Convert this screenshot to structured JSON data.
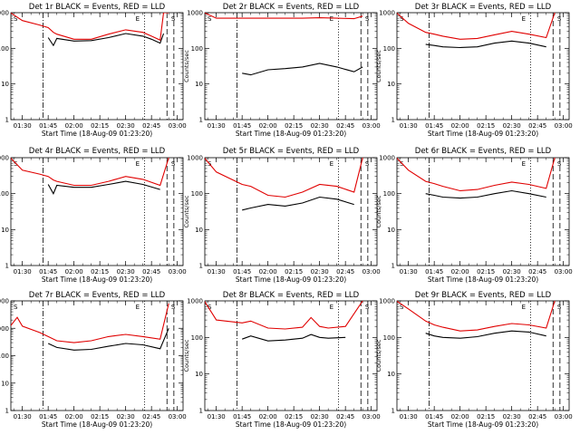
{
  "ylabel": "Counts/sec",
  "xlabel": "Start Time (18-Aug-09 01:23:20)",
  "xtick_labels": [
    "01:30",
    "01:45",
    "02:00",
    "02:15",
    "02:30",
    "02:45",
    "03:00"
  ],
  "ytick_labels": [
    "1",
    "10",
    "100",
    "1000"
  ],
  "ytick_labels_tall": [
    "1",
    "10",
    "100",
    "1000",
    "10000"
  ],
  "colors": {
    "events": "#000000",
    "lld": "#e00000"
  },
  "chart_data": [
    {
      "type": "line",
      "title": "Det 1r BLACK = Events, RED = LLD",
      "xlim": [
        "01:23:20",
        "03:03:20"
      ],
      "ylim": [
        1,
        1000
      ],
      "yscale": "log",
      "x": [
        "01:23",
        "01:30",
        "01:40",
        "01:45",
        "01:48",
        "01:50",
        "02:00",
        "02:10",
        "02:20",
        "02:30",
        "02:40",
        "02:45",
        "02:50",
        "02:52",
        "02:55"
      ],
      "series": [
        {
          "name": "Events",
          "values": [
            null,
            null,
            null,
            200,
            120,
            190,
            160,
            165,
            200,
            260,
            220,
            180,
            140,
            260,
            null
          ]
        },
        {
          "name": "LLD",
          "values": [
            1000,
            600,
            450,
            380,
            280,
            250,
            180,
            180,
            250,
            330,
            280,
            220,
            170,
            1000,
            1000
          ]
        }
      ],
      "markers": [
        "S",
        "E",
        "S"
      ],
      "vlines": [
        "01:42",
        "02:41",
        "02:54",
        "02:58"
      ]
    },
    {
      "type": "line",
      "title": "Det 2r BLACK = Events, RED = LLD",
      "xlim": [
        "01:23:20",
        "03:03:20"
      ],
      "ylim": [
        1,
        1000
      ],
      "yscale": "log",
      "x": [
        "01:23",
        "01:30",
        "01:45",
        "01:50",
        "02:00",
        "02:10",
        "02:20",
        "02:30",
        "02:40",
        "02:50",
        "02:55"
      ],
      "series": [
        {
          "name": "Events",
          "values": [
            null,
            null,
            20,
            18,
            25,
            27,
            30,
            38,
            30,
            22,
            30
          ]
        },
        {
          "name": "LLD",
          "values": [
            1000,
            700,
            700,
            700,
            700,
            700,
            700,
            720,
            700,
            680,
            800
          ]
        }
      ],
      "markers": [
        "S",
        "E",
        "S"
      ],
      "vlines": [
        "01:42",
        "02:41",
        "02:54",
        "02:58"
      ]
    },
    {
      "type": "line",
      "title": "Det 3r BLACK = Events, RED = LLD",
      "xlim": [
        "01:23:20",
        "03:03:20"
      ],
      "ylim": [
        1,
        1000
      ],
      "yscale": "log",
      "x": [
        "01:23",
        "01:30",
        "01:40",
        "01:45",
        "01:50",
        "02:00",
        "02:10",
        "02:20",
        "02:30",
        "02:40",
        "02:50",
        "02:55"
      ],
      "series": [
        {
          "name": "Events",
          "values": [
            null,
            null,
            130,
            120,
            110,
            105,
            110,
            140,
            160,
            140,
            110,
            null
          ]
        },
        {
          "name": "LLD",
          "values": [
            1000,
            500,
            280,
            250,
            220,
            180,
            190,
            240,
            300,
            250,
            200,
            1000
          ]
        }
      ],
      "markers": [
        "S",
        "E",
        "S"
      ],
      "vlines": [
        "01:42",
        "02:41",
        "02:54",
        "02:58"
      ]
    },
    {
      "type": "line",
      "title": "Det 4r BLACK = Events, RED = LLD",
      "xlim": [
        "01:23:20",
        "03:03:20"
      ],
      "ylim": [
        1,
        1000
      ],
      "yscale": "log",
      "x": [
        "01:23",
        "01:30",
        "01:40",
        "01:45",
        "01:48",
        "01:50",
        "02:00",
        "02:10",
        "02:20",
        "02:30",
        "02:40",
        "02:50",
        "02:55"
      ],
      "series": [
        {
          "name": "Events",
          "values": [
            null,
            null,
            null,
            180,
            100,
            170,
            150,
            150,
            180,
            220,
            180,
            130,
            null
          ]
        },
        {
          "name": "LLD",
          "values": [
            1000,
            450,
            350,
            300,
            240,
            220,
            170,
            170,
            220,
            300,
            250,
            170,
            1000
          ]
        }
      ],
      "markers": [
        "S",
        "E",
        "S"
      ],
      "vlines": [
        "01:42",
        "02:41",
        "02:54",
        "02:58"
      ]
    },
    {
      "type": "line",
      "title": "Det 5r BLACK = Events, RED = LLD",
      "xlim": [
        "01:23:20",
        "03:03:20"
      ],
      "ylim": [
        1,
        1000
      ],
      "yscale": "log",
      "x": [
        "01:23",
        "01:30",
        "01:45",
        "01:50",
        "02:00",
        "02:10",
        "02:20",
        "02:30",
        "02:40",
        "02:50",
        "02:55"
      ],
      "series": [
        {
          "name": "Events",
          "values": [
            null,
            null,
            35,
            40,
            50,
            45,
            55,
            80,
            70,
            50,
            null
          ]
        },
        {
          "name": "LLD",
          "values": [
            1000,
            400,
            180,
            160,
            90,
            80,
            110,
            180,
            160,
            110,
            1000
          ]
        }
      ],
      "markers": [
        "S",
        "E",
        "S"
      ],
      "vlines": [
        "01:42",
        "02:41",
        "02:54",
        "02:58"
      ]
    },
    {
      "type": "line",
      "title": "Det 6r BLACK = Events, RED = LLD",
      "xlim": [
        "01:23:20",
        "03:03:20"
      ],
      "ylim": [
        1,
        1000
      ],
      "yscale": "log",
      "x": [
        "01:23",
        "01:30",
        "01:40",
        "01:45",
        "01:50",
        "02:00",
        "02:10",
        "02:20",
        "02:30",
        "02:40",
        "02:50",
        "02:55"
      ],
      "series": [
        {
          "name": "Events",
          "values": [
            null,
            null,
            100,
            90,
            80,
            75,
            80,
            100,
            120,
            100,
            80,
            null
          ]
        },
        {
          "name": "LLD",
          "values": [
            1000,
            450,
            220,
            190,
            160,
            120,
            130,
            170,
            210,
            180,
            140,
            1000
          ]
        }
      ],
      "markers": [
        "S",
        "E",
        "S"
      ],
      "vlines": [
        "01:42",
        "02:41",
        "02:54",
        "02:58"
      ]
    },
    {
      "type": "line",
      "title": "Det 7r BLACK = Events, RED = LLD",
      "xlim": [
        "01:23:20",
        "03:03:20"
      ],
      "ylim": [
        1,
        10000
      ],
      "yscale": "log",
      "x": [
        "01:23",
        "01:27",
        "01:30",
        "01:40",
        "01:45",
        "01:50",
        "02:00",
        "02:10",
        "02:20",
        "02:30",
        "02:40",
        "02:50",
        "02:55"
      ],
      "series": [
        {
          "name": "Events",
          "values": [
            null,
            null,
            null,
            null,
            280,
            200,
            160,
            170,
            220,
            280,
            250,
            180,
            1000
          ]
        },
        {
          "name": "LLD",
          "values": [
            1200,
            2500,
            1200,
            700,
            500,
            350,
            300,
            350,
            500,
            600,
            500,
            400,
            8000
          ]
        }
      ],
      "markers": [
        "S",
        "E",
        "S"
      ],
      "vlines": [
        "01:42",
        "02:41",
        "02:54",
        "02:58"
      ]
    },
    {
      "type": "line",
      "title": "Det 8r BLACK = Events, RED = LLD",
      "xlim": [
        "01:23:20",
        "03:03:20"
      ],
      "ylim": [
        1,
        1000
      ],
      "yscale": "log",
      "x": [
        "01:23",
        "01:30",
        "01:45",
        "01:50",
        "02:00",
        "02:10",
        "02:20",
        "02:25",
        "02:30",
        "02:35",
        "02:45",
        "02:55"
      ],
      "series": [
        {
          "name": "Events",
          "values": [
            null,
            null,
            90,
            110,
            80,
            85,
            95,
            120,
            100,
            95,
            100,
            null
          ]
        },
        {
          "name": "LLD",
          "values": [
            1000,
            300,
            250,
            280,
            180,
            170,
            190,
            350,
            200,
            180,
            200,
            1000
          ]
        }
      ],
      "markers": [
        "S",
        "E",
        "S"
      ],
      "vlines": [
        "01:42",
        "02:41",
        "02:54",
        "02:58"
      ]
    },
    {
      "type": "line",
      "title": "Det 9r BLACK = Events, RED = LLD",
      "xlim": [
        "01:23:20",
        "03:03:20"
      ],
      "ylim": [
        1,
        1000
      ],
      "yscale": "log",
      "x": [
        "01:23",
        "01:30",
        "01:40",
        "01:45",
        "01:50",
        "02:00",
        "02:10",
        "02:20",
        "02:30",
        "02:40",
        "02:50",
        "02:55"
      ],
      "series": [
        {
          "name": "Events",
          "values": [
            null,
            null,
            130,
            110,
            100,
            95,
            105,
            130,
            150,
            140,
            110,
            null
          ]
        },
        {
          "name": "LLD",
          "values": [
            1000,
            600,
            280,
            220,
            190,
            150,
            160,
            200,
            240,
            220,
            180,
            1000
          ]
        }
      ],
      "markers": [
        "S",
        "E",
        "S"
      ],
      "vlines": [
        "01:42",
        "02:41",
        "02:54",
        "02:58"
      ]
    }
  ]
}
